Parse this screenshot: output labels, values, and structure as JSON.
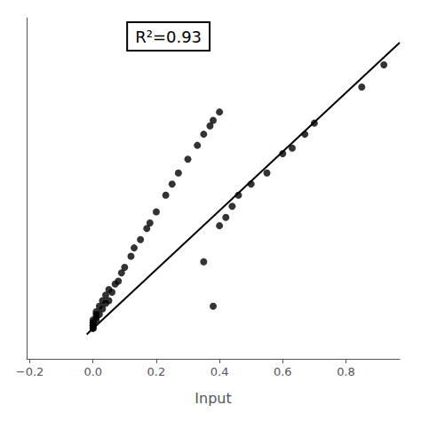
{
  "chart_data": {
    "type": "scatter",
    "xlabel": "Input",
    "annotation": "R²=0.93",
    "series": [
      {
        "type": "scatter",
        "color": "#000000",
        "x": [
          0.0,
          0.0,
          0.0,
          0.0,
          0.0,
          0.0,
          0.0,
          0.0,
          0.01,
          0.01,
          0.01,
          0.01,
          0.02,
          0.02,
          0.03,
          0.03,
          0.04,
          0.04,
          0.05,
          0.05,
          0.06,
          0.07,
          0.08,
          0.09,
          0.1,
          0.12,
          0.13,
          0.15,
          0.17,
          0.18,
          0.2,
          0.23,
          0.25,
          0.27,
          0.3,
          0.33,
          0.35,
          0.37,
          0.38,
          0.4,
          0.4,
          0.42,
          0.44,
          0.46,
          0.5,
          0.55,
          0.6,
          0.63,
          0.67,
          0.7,
          0.85,
          0.92,
          0.38,
          0.35
        ],
        "values": [
          0.0,
          0.0,
          0.01,
          0.01,
          0.01,
          0.02,
          0.02,
          0.03,
          0.03,
          0.04,
          0.05,
          0.06,
          0.05,
          0.08,
          0.07,
          0.1,
          0.09,
          0.12,
          0.1,
          0.14,
          0.13,
          0.16,
          0.17,
          0.2,
          0.22,
          0.26,
          0.29,
          0.32,
          0.36,
          0.38,
          0.42,
          0.48,
          0.52,
          0.56,
          0.61,
          0.66,
          0.7,
          0.73,
          0.75,
          0.78,
          0.37,
          0.4,
          0.44,
          0.48,
          0.52,
          0.56,
          0.63,
          0.65,
          0.7,
          0.74,
          0.87,
          0.95,
          0.08,
          0.24
        ]
      },
      {
        "type": "line",
        "color": "#000000",
        "x": [
          -0.02,
          0.97
        ],
        "values": [
          -0.022,
          1.03
        ]
      }
    ],
    "xlim": [
      -0.21,
      0.97
    ],
    "ylim": [
      -0.11,
      1.12
    ],
    "xticks": [
      {
        "value": -0.2,
        "label": "−0.2"
      },
      {
        "value": 0,
        "label": "0.0"
      },
      {
        "value": 0.2,
        "label": "0.2"
      },
      {
        "value": 0.4,
        "label": "0.4"
      },
      {
        "value": 0.6,
        "label": "0.6"
      },
      {
        "value": 0.8,
        "label": "0.8"
      }
    ],
    "tick_labels": "x",
    "grid": false
  }
}
